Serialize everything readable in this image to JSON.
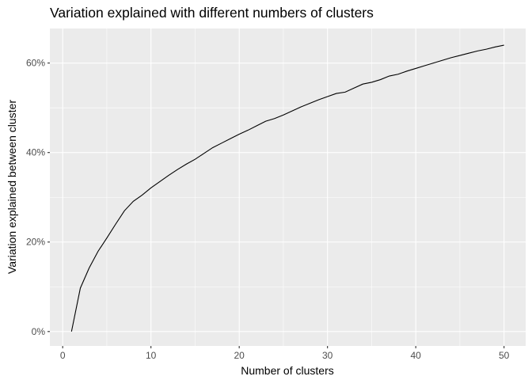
{
  "chart_data": {
    "type": "line",
    "title": "Variation explained with different numbers of clusters",
    "xlabel": "Number of clusters",
    "ylabel": "Variation explained between cluster",
    "xlim": [
      -1.45,
      52.45
    ],
    "ylim": [
      -0.0322,
      0.6772
    ],
    "x_ticks": [
      0,
      10,
      20,
      30,
      40,
      50
    ],
    "x_tick_labels": [
      "0",
      "10",
      "20",
      "30",
      "40",
      "50"
    ],
    "y_ticks": [
      0,
      0.2,
      0.4,
      0.6
    ],
    "y_tick_labels": [
      "0%",
      "20%",
      "40%",
      "60%"
    ],
    "grid": true,
    "panel_background": "#ebebeb",
    "line_color": "#000000",
    "series": [
      {
        "x": [
          1,
          2,
          3,
          4,
          5,
          6,
          7,
          8,
          9,
          10,
          11,
          12,
          13,
          14,
          15,
          16,
          17,
          18,
          19,
          20,
          21,
          22,
          23,
          24,
          25,
          26,
          27,
          28,
          29,
          30,
          31,
          32,
          33,
          34,
          35,
          36,
          37,
          38,
          39,
          40,
          41,
          42,
          43,
          44,
          45,
          46,
          47,
          48,
          49,
          50
        ],
        "values": [
          0.0,
          0.097,
          0.142,
          0.179,
          0.209,
          0.24,
          0.27,
          0.291,
          0.305,
          0.321,
          0.335,
          0.349,
          0.362,
          0.374,
          0.385,
          0.398,
          0.411,
          0.421,
          0.431,
          0.441,
          0.45,
          0.46,
          0.47,
          0.476,
          0.484,
          0.493,
          0.502,
          0.51,
          0.518,
          0.525,
          0.532,
          0.535,
          0.544,
          0.553,
          0.557,
          0.563,
          0.571,
          0.575,
          0.582,
          0.588,
          0.594,
          0.6,
          0.606,
          0.612,
          0.617,
          0.622,
          0.627,
          0.631,
          0.636,
          0.64
        ]
      }
    ]
  }
}
